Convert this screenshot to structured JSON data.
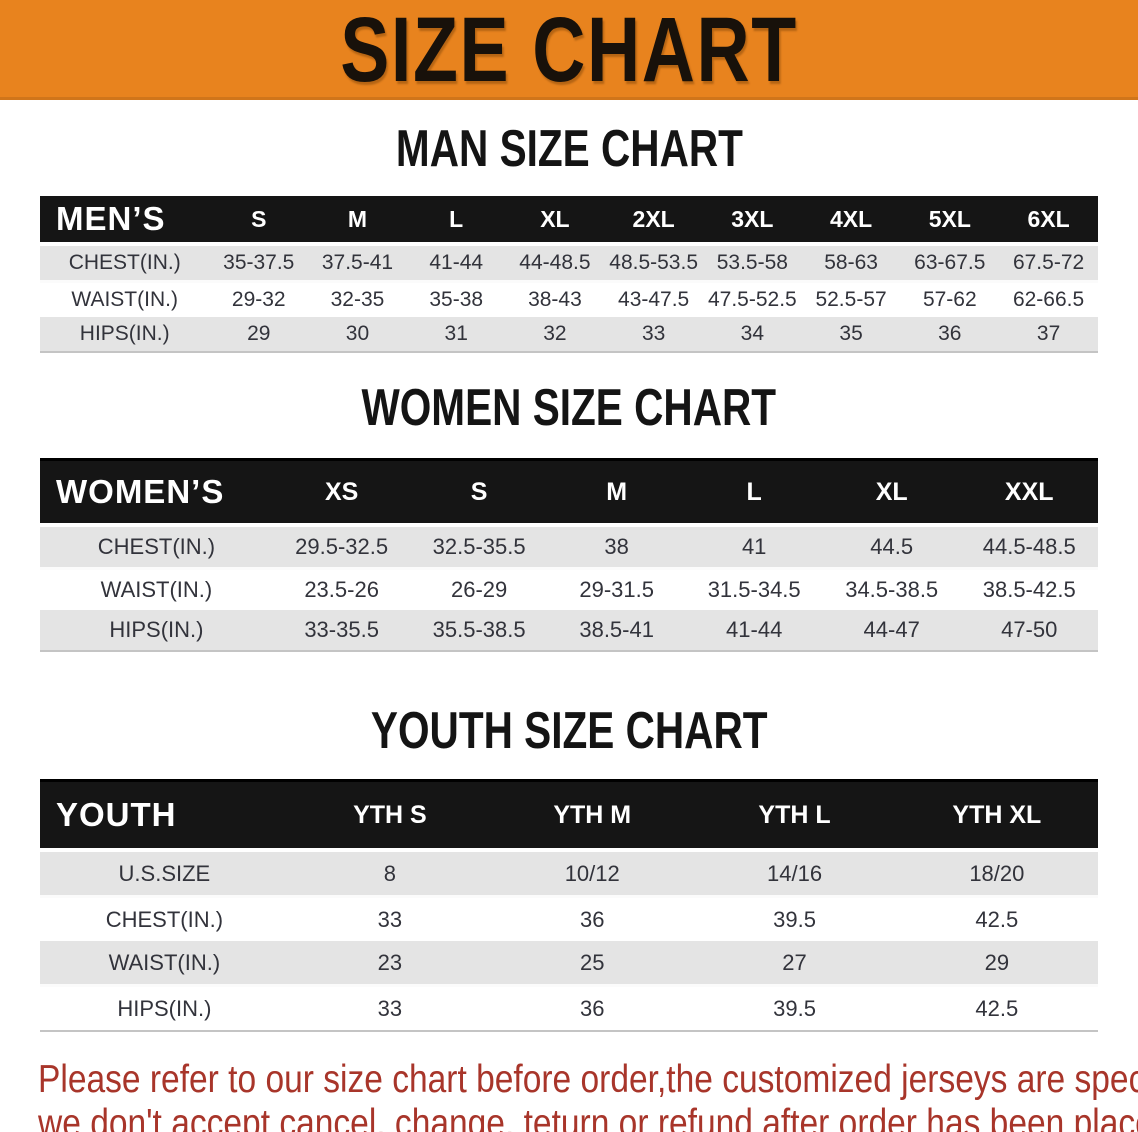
{
  "banner": {
    "title": "SIZE CHART",
    "bg_color": "#E8831E",
    "text_color": "#18110a"
  },
  "sections": [
    {
      "id": "men",
      "heading": "MAN SIZE CHART",
      "label": "MEN’S",
      "columns": [
        "S",
        "M",
        "L",
        "XL",
        "2XL",
        "3XL",
        "4XL",
        "5XL",
        "6XL"
      ],
      "rows": [
        {
          "label": "CHEST(IN.)",
          "values": [
            "35-37.5",
            "37.5-41",
            "41-44",
            "44-48.5",
            "48.5-53.5",
            "53.5-58",
            "58-63",
            "63-67.5",
            "67.5-72"
          ]
        },
        {
          "label": "WAIST(IN.)",
          "values": [
            "29-32",
            "32-35",
            "35-38",
            "38-43",
            "43-47.5",
            "47.5-52.5",
            "52.5-57",
            "57-62",
            "62-66.5"
          ]
        },
        {
          "label": "HIPS(IN.)",
          "values": [
            "29",
            "30",
            "31",
            "32",
            "33",
            "34",
            "35",
            "36",
            "37"
          ]
        }
      ]
    },
    {
      "id": "women",
      "heading": "WOMEN SIZE CHART",
      "label": "WOMEN’S",
      "columns": [
        "XS",
        "S",
        "M",
        "L",
        "XL",
        "XXL"
      ],
      "rows": [
        {
          "label": "CHEST(IN.)",
          "values": [
            "29.5-32.5",
            "32.5-35.5",
            "38",
            "41",
            "44.5",
            "44.5-48.5"
          ]
        },
        {
          "label": "WAIST(IN.)",
          "values": [
            "23.5-26",
            "26-29",
            "29-31.5",
            "31.5-34.5",
            "34.5-38.5",
            "38.5-42.5"
          ]
        },
        {
          "label": "HIPS(IN.)",
          "values": [
            "33-35.5",
            "35.5-38.5",
            "38.5-41",
            "41-44",
            "44-47",
            "47-50"
          ]
        }
      ]
    },
    {
      "id": "youth",
      "heading": "YOUTH SIZE CHART",
      "label": "YOUTH",
      "columns": [
        "YTH S",
        "YTH M",
        "YTH L",
        "YTH XL"
      ],
      "rows": [
        {
          "label": "U.S.SIZE",
          "values": [
            "8",
            "10/12",
            "14/16",
            "18/20"
          ]
        },
        {
          "label": "CHEST(IN.)",
          "values": [
            "33",
            "36",
            "39.5",
            "42.5"
          ]
        },
        {
          "label": "WAIST(IN.)",
          "values": [
            "23",
            "25",
            "27",
            "29"
          ]
        },
        {
          "label": "HIPS(IN.)",
          "values": [
            "33",
            "36",
            "39.5",
            "42.5"
          ]
        }
      ]
    }
  ],
  "footer": {
    "line1": "Please refer to our size chart before order,the customized jerseys are special products,",
    "line2": "we don't accept cancel, change, teturn or refund after order has been placed!",
    "text_color": "#A8352A"
  },
  "style_colors": {
    "table_header_bg": "#151515",
    "row_alt_bg": "#E4E4E4",
    "row_bg": "#FFFFFF"
  }
}
